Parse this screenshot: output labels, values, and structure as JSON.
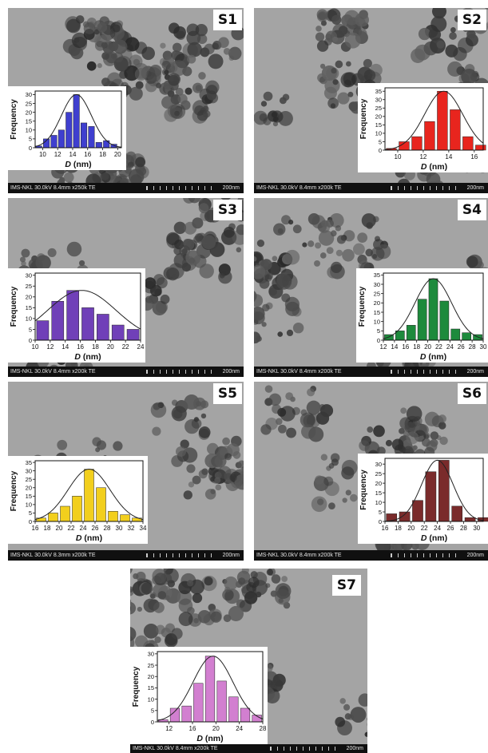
{
  "panels": [
    {
      "label": "S1",
      "info": "IMS-NKL 30.0kV 8.4mm x250k TE",
      "scale": "200nm"
    },
    {
      "label": "S2",
      "info": "IMS-NKL 30.0kV 8.4mm x200k TE",
      "scale": "200nm"
    },
    {
      "label": "S3",
      "info": "IMS-NKL 30.0kV 8.4mm x200k TE",
      "scale": "200nm"
    },
    {
      "label": "S4",
      "info": "IMS-NKL 30.0kV 8.4mm x200k TE",
      "scale": "200nm"
    },
    {
      "label": "S5",
      "info": "IMS-NKL 30.0kV 8.3mm x200k TE",
      "scale": "200nm"
    },
    {
      "label": "S6",
      "info": "IMS-NKL 30.0kV 8.4mm x200k TE",
      "scale": "200nm"
    },
    {
      "label": "S7",
      "info": "IMS-NKL 30.0kV 8.4mm x200k TE",
      "scale": "200nm"
    }
  ],
  "chart_data": [
    {
      "type": "bar",
      "sample": "S1",
      "xlabel_italic": "D",
      "xlabel_unit": "(nm)",
      "ylabel": "Frequency",
      "color": "#3f3fcf",
      "x": [
        9.5,
        10.5,
        11.5,
        12.5,
        13.5,
        14.5,
        15.5,
        16.5,
        17.5,
        18.5,
        19.5
      ],
      "values": [
        1,
        5,
        7,
        10,
        20,
        30,
        14,
        12,
        3,
        4,
        2
      ],
      "xlim": [
        9,
        20.5
      ],
      "ylim": [
        0,
        32
      ],
      "xticks": [
        10,
        12,
        14,
        16,
        18,
        20
      ],
      "yticks": [
        0,
        5,
        10,
        15,
        20,
        25,
        30
      ],
      "fit": {
        "mean": 14.5,
        "sd": 2.0,
        "peak": 30
      }
    },
    {
      "type": "bar",
      "sample": "S2",
      "xlabel_italic": "D",
      "xlabel_unit": "(nm)",
      "ylabel": "Frequency",
      "color": "#e8251e",
      "x": [
        9.5,
        10.5,
        11.5,
        12.5,
        13.5,
        14.5,
        15.5,
        16.5
      ],
      "values": [
        1,
        5,
        8,
        17,
        35,
        24,
        8,
        3
      ],
      "xlim": [
        9,
        16.7
      ],
      "ylim": [
        0,
        37
      ],
      "xticks": [
        10,
        12,
        14,
        16
      ],
      "yticks": [
        0,
        5,
        10,
        15,
        20,
        25,
        30,
        35
      ],
      "fit": {
        "mean": 13.6,
        "sd": 1.5,
        "peak": 35
      }
    },
    {
      "type": "bar",
      "sample": "S3",
      "xlabel_italic": "D",
      "xlabel_unit": "(nm)",
      "ylabel": "Frequency",
      "color": "#7040b8",
      "x": [
        11,
        13,
        15,
        17,
        19,
        21,
        23
      ],
      "values": [
        9,
        18,
        23,
        15,
        12,
        7,
        5
      ],
      "xlim": [
        10,
        24
      ],
      "ylim": [
        0,
        31
      ],
      "xticks": [
        10,
        12,
        14,
        16,
        18,
        20,
        22,
        24
      ],
      "yticks": [
        0,
        5,
        10,
        15,
        20,
        25,
        30
      ],
      "fit": {
        "mean": 16.2,
        "sd": 4.5,
        "peak": 23
      }
    },
    {
      "type": "bar",
      "sample": "S4",
      "xlabel_italic": "D",
      "xlabel_unit": "(nm)",
      "ylabel": "Frequency",
      "color": "#1d8a3c",
      "x": [
        13,
        15,
        17,
        19,
        21,
        23,
        25,
        27,
        29
      ],
      "values": [
        3,
        5,
        8,
        22,
        33,
        21,
        6,
        4,
        3
      ],
      "xlim": [
        12,
        30
      ],
      "ylim": [
        0,
        36
      ],
      "xticks": [
        12,
        14,
        16,
        18,
        20,
        22,
        24,
        26,
        28,
        30
      ],
      "yticks": [
        0,
        5,
        10,
        15,
        20,
        25,
        30,
        35
      ],
      "fit": {
        "mean": 21,
        "sd": 3.3,
        "peak": 33
      }
    },
    {
      "type": "bar",
      "sample": "S5",
      "xlabel_italic": "D",
      "xlabel_unit": "(nm)",
      "ylabel": "Frequency",
      "color": "#f2cf1d",
      "x": [
        17,
        19,
        21,
        23,
        25,
        27,
        29,
        31,
        33
      ],
      "values": [
        2,
        5,
        9,
        15,
        31,
        20,
        6,
        4,
        2
      ],
      "xlim": [
        16,
        34
      ],
      "ylim": [
        0,
        36
      ],
      "xticks": [
        16,
        18,
        20,
        22,
        24,
        26,
        28,
        30,
        32,
        34
      ],
      "yticks": [
        0,
        5,
        10,
        15,
        20,
        25,
        30,
        35
      ],
      "fit": {
        "mean": 25,
        "sd": 3.5,
        "peak": 31
      }
    },
    {
      "type": "bar",
      "sample": "S6",
      "xlabel_italic": "D",
      "xlabel_unit": "(nm)",
      "ylabel": "Frequency",
      "color": "#7a2b2b",
      "x": [
        17,
        19,
        21,
        23,
        25,
        27,
        29,
        31
      ],
      "values": [
        4,
        5,
        11,
        26,
        32,
        8,
        2,
        2
      ],
      "xlim": [
        16,
        31
      ],
      "ylim": [
        0,
        33
      ],
      "xticks": [
        16,
        18,
        20,
        22,
        24,
        26,
        28,
        30
      ],
      "yticks": [
        0,
        5,
        10,
        15,
        20,
        25,
        30
      ],
      "fit": {
        "mean": 24,
        "sd": 2.4,
        "peak": 32
      }
    },
    {
      "type": "bar",
      "sample": "S7",
      "xlabel_italic": "D",
      "xlabel_unit": "(nm)",
      "ylabel": "Frequency",
      "color": "#d27fd0",
      "x": [
        11,
        13,
        15,
        17,
        19,
        21,
        23,
        25,
        27
      ],
      "values": [
        1,
        6,
        7,
        17,
        29,
        18,
        11,
        6,
        3
      ],
      "xlim": [
        10,
        28
      ],
      "ylim": [
        0,
        31
      ],
      "xticks": [
        12,
        16,
        20,
        24,
        28
      ],
      "yticks": [
        0,
        5,
        10,
        15,
        20,
        25,
        30
      ],
      "fit": {
        "mean": 19.5,
        "sd": 3.4,
        "peak": 29
      }
    }
  ]
}
